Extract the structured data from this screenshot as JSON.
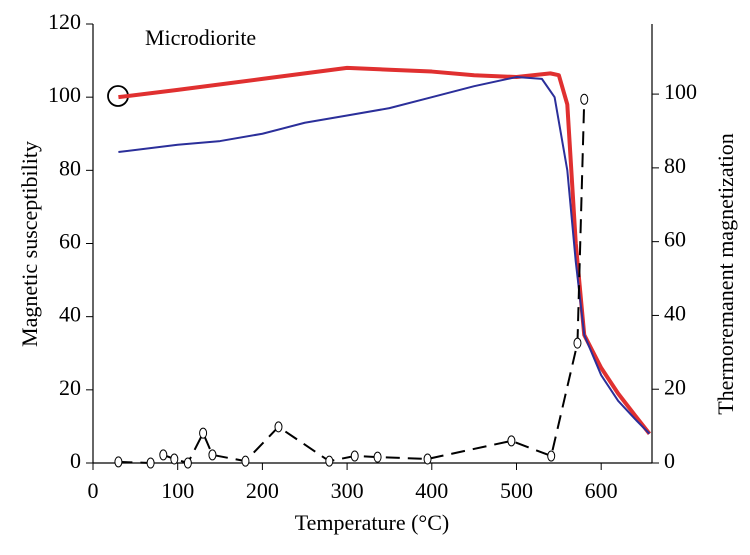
{
  "chart_data": {
    "type": "line",
    "annotation": "Microdiorite",
    "x_label": "Temperature (°C)",
    "y_label": "Magnetic susceptibility",
    "y2_label": "Thermoremanent magnetization",
    "xlim": [
      0,
      660
    ],
    "xticks": [
      0,
      100,
      200,
      300,
      400,
      500,
      600
    ],
    "ylim": [
      0,
      120
    ],
    "yticks": [
      0,
      20,
      40,
      60,
      80,
      100,
      120
    ],
    "y2lim": [
      0,
      119
    ],
    "y2ticks": [
      0,
      20,
      40,
      60,
      80,
      100
    ],
    "grid": false,
    "series": [
      {
        "color": "#e03030",
        "width": 4,
        "dashed": false,
        "markers": false,
        "x": [
          30,
          100,
          200,
          300,
          350,
          400,
          450,
          500,
          540,
          550,
          560,
          570,
          580,
          600,
          620,
          640,
          657
        ],
        "values": [
          100,
          102,
          105,
          108,
          107.5,
          107,
          106,
          105.5,
          106.5,
          106,
          98,
          60,
          35,
          26,
          19,
          13,
          8
        ]
      },
      {
        "color": "#2b2f9a",
        "width": 2,
        "dashed": false,
        "markers": false,
        "x": [
          30,
          100,
          150,
          200,
          250,
          300,
          350,
          400,
          450,
          500,
          530,
          545,
          560,
          570,
          580,
          600,
          620,
          640,
          657
        ],
        "values": [
          85,
          87,
          88,
          90,
          93,
          95,
          97,
          100,
          103,
          105.5,
          105,
          100,
          80,
          55,
          35,
          24,
          17,
          12,
          8
        ]
      },
      {
        "color": "#000000",
        "width": 2,
        "dashed": true,
        "markers": true,
        "axis": "y2",
        "x": [
          30,
          68,
          83,
          96,
          112,
          130,
          141,
          180,
          219,
          279,
          309,
          336,
          395,
          494,
          541,
          572,
          580
        ],
        "values": [
          0.3,
          0,
          2.2,
          1.1,
          0,
          8.1,
          2.2,
          0.5,
          9.8,
          0.5,
          1.9,
          1.6,
          1.1,
          6,
          1.9,
          32.5,
          98.6
        ]
      }
    ]
  }
}
